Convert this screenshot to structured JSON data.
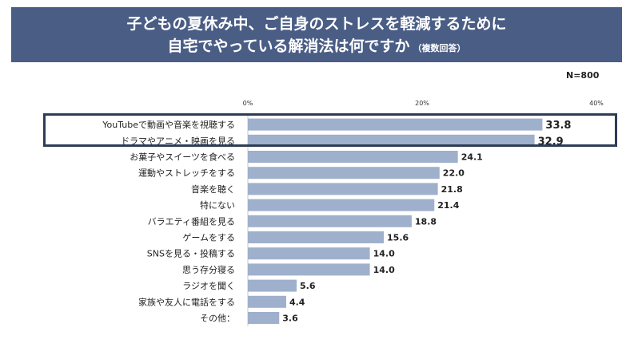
{
  "title": {
    "line1": "子どもの夏休み中、ご自身のストレスを軽減するために",
    "line2": "自宅でやっている解消法は何ですか",
    "note": "（複数回答）"
  },
  "sample_size": "N=800",
  "colors": {
    "banner": "#4a5d85",
    "bar": "#9fb0cc",
    "highlight_border": "#2e3d55"
  },
  "chart_data": {
    "type": "bar",
    "orientation": "horizontal",
    "title": "子どもの夏休み中、ご自身のストレスを軽減するために自宅でやっている解消法は何ですか（複数回答）",
    "xlim": [
      0,
      40
    ],
    "ticks": [
      0,
      20,
      40
    ],
    "tick_labels": [
      "0%",
      "20%",
      "40%"
    ],
    "categories": [
      "YouTubeで動画や音楽を視聴する",
      "ドラマやアニメ・映画を見る",
      "お菓子やスイーツを食べる",
      "運動やストレッチをする",
      "音楽を聴く",
      "特にない",
      "バラエティ番組を見る",
      "ゲームをする",
      "SNSを見る・投稿する",
      "思う存分寝る",
      "ラジオを聞く",
      "家族や友人に電話をする",
      "その他："
    ],
    "values": [
      33.8,
      32.9,
      24.1,
      22.0,
      21.8,
      21.4,
      18.8,
      15.6,
      14.0,
      14.0,
      5.6,
      4.4,
      3.6
    ],
    "value_labels": [
      "33.8",
      "32.9",
      "24.1",
      "22.0",
      "21.8",
      "21.4",
      "18.8",
      "15.6",
      "14.0",
      "14.0",
      "5.6",
      "4.4",
      "3.6"
    ],
    "highlighted": [
      0,
      1
    ]
  }
}
